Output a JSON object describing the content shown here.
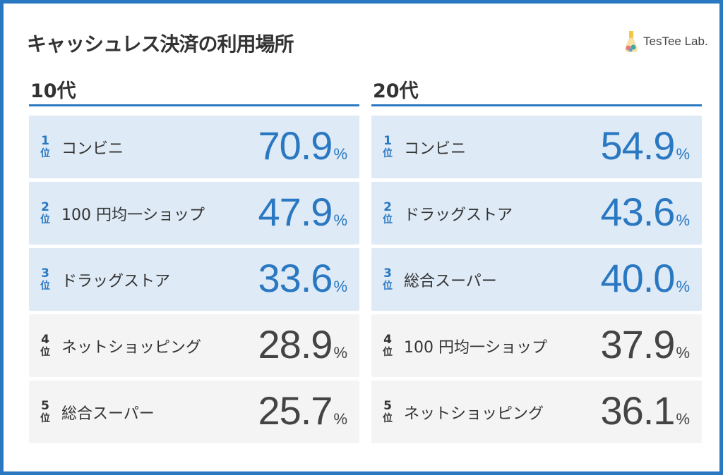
{
  "title": "キャッシュレス決済の利用場所",
  "logo": "TesTee Lab.",
  "colors": {
    "accent": "#2a78c2",
    "highlight_bg": "#deeaf6",
    "normal_bg": "#f4f4f4"
  },
  "rank_suffix": "位",
  "percent": "%",
  "groups": [
    {
      "heading": "10代",
      "items": [
        {
          "rank": "1",
          "label": "コンビニ",
          "value": "70.9"
        },
        {
          "rank": "2",
          "label": "100 円均一ショップ",
          "value": "47.9"
        },
        {
          "rank": "3",
          "label": "ドラッグストア",
          "value": "33.6"
        },
        {
          "rank": "4",
          "label": "ネットショッピング",
          "value": "28.9"
        },
        {
          "rank": "5",
          "label": "総合スーパー",
          "value": "25.7"
        }
      ]
    },
    {
      "heading": "20代",
      "items": [
        {
          "rank": "1",
          "label": "コンビニ",
          "value": "54.9"
        },
        {
          "rank": "2",
          "label": "ドラッグストア",
          "value": "43.6"
        },
        {
          "rank": "3",
          "label": "総合スーパー",
          "value": "40.0"
        },
        {
          "rank": "4",
          "label": "100 円均一ショップ",
          "value": "37.9"
        },
        {
          "rank": "5",
          "label": "ネットショッピング",
          "value": "36.1"
        }
      ]
    }
  ]
}
